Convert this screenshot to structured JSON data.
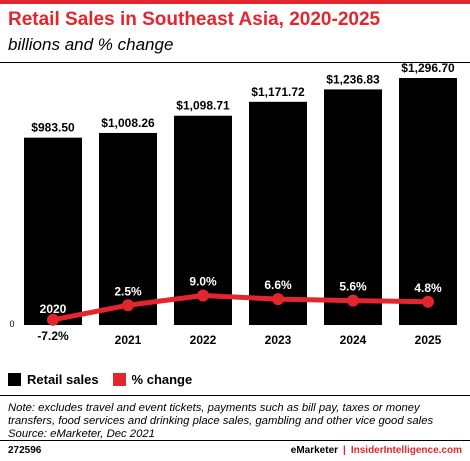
{
  "header": {
    "title": "Retail Sales in Southeast Asia, 2020-2025",
    "subtitle": "billions and % change"
  },
  "chart_data": {
    "type": "bar",
    "categories": [
      "2020",
      "2021",
      "2022",
      "2023",
      "2024",
      "2025"
    ],
    "series": [
      {
        "name": "Retail sales",
        "kind": "bar",
        "values": [
          983.5,
          1008.26,
          1098.71,
          1171.72,
          1236.83,
          1296.7
        ],
        "labels": [
          "$983.50",
          "$1,008.26",
          "$1,098.71",
          "$1,171.72",
          "$1,236.83",
          "$1,296.70"
        ],
        "color": "#000000"
      },
      {
        "name": "% change",
        "kind": "line",
        "values": [
          -7.2,
          2.5,
          9.0,
          6.6,
          5.6,
          4.8
        ],
        "labels": [
          "-7.2%",
          "2.5%",
          "9.0%",
          "6.6%",
          "5.6%",
          "4.8%"
        ],
        "color": "#e3262d"
      }
    ],
    "zero_label": "0",
    "legend_position": "bottom-left",
    "grid": false
  },
  "note": "Note: excludes travel and event tickets, payments such as bill pay, taxes or money transfers, food services and drinking place sales, gambling and other vice good sales",
  "source": "Source: eMarketer, Dec 2021",
  "footer": {
    "id": "272596",
    "brand": "eMarketer",
    "separator": "|",
    "brand2": "InsiderIntelligence.com"
  }
}
